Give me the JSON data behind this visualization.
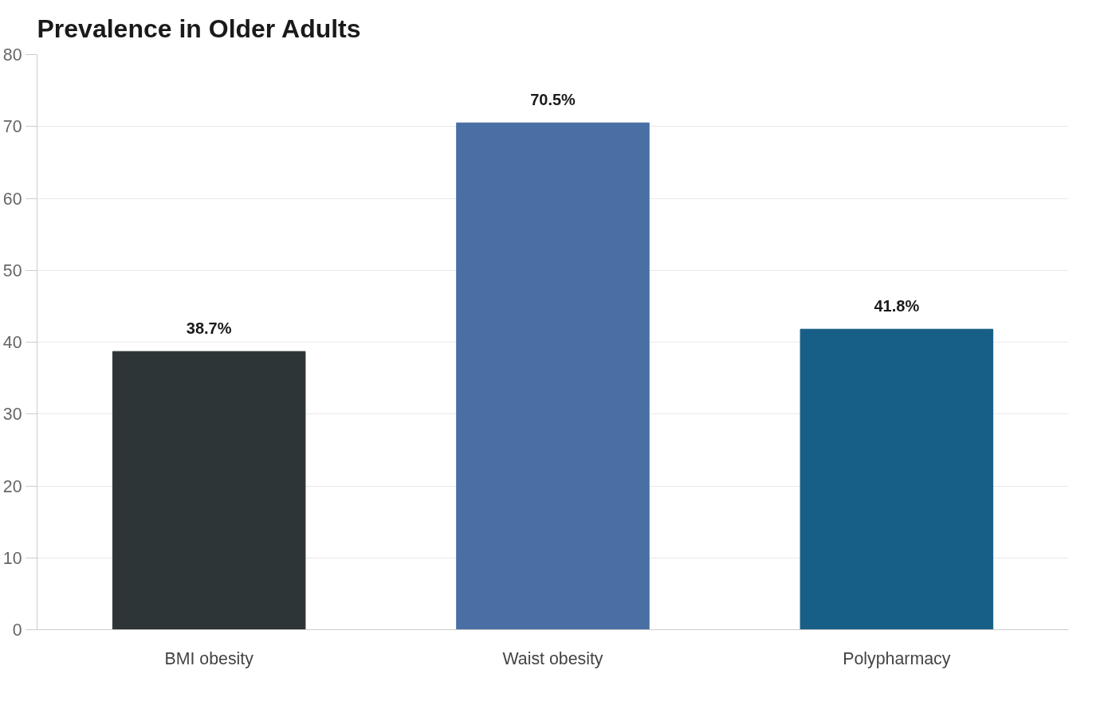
{
  "chart_data": {
    "type": "bar",
    "title": "Prevalence in Older Adults",
    "categories": [
      "BMI obesity",
      "Waist obesity",
      "Polypharmacy"
    ],
    "values": [
      38.7,
      70.5,
      41.8
    ],
    "value_labels": [
      "38.7%",
      "70.5%",
      "41.8%"
    ],
    "colors": [
      "#2e3537",
      "#4a6fa5",
      "#185f87"
    ],
    "ylim": [
      0,
      80
    ],
    "yticks": [
      0,
      10,
      20,
      30,
      40,
      50,
      60,
      70,
      80
    ],
    "grid": "y"
  }
}
